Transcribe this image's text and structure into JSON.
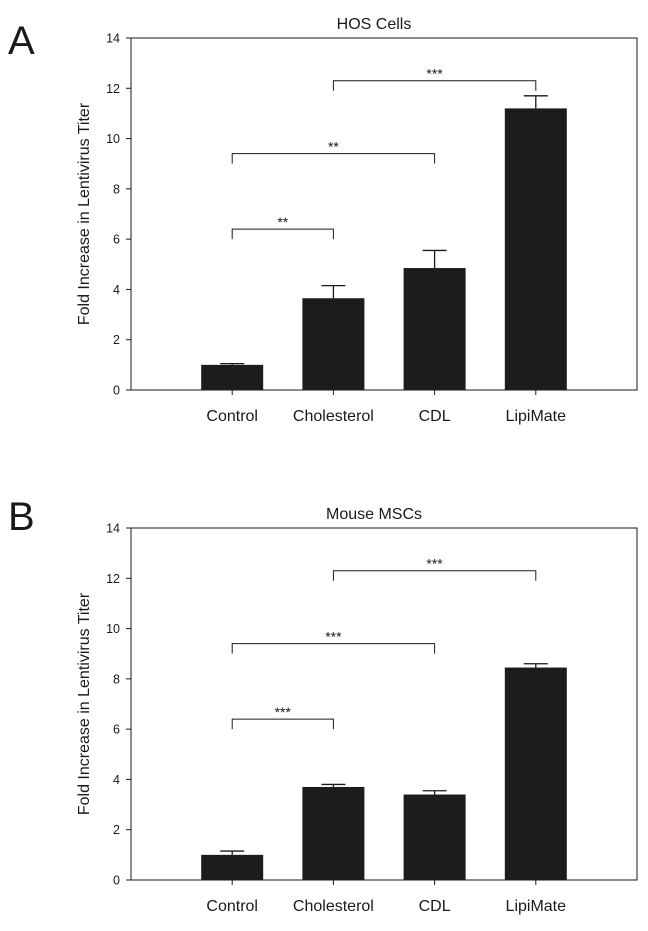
{
  "colors": {
    "bar": "#1c1c1c",
    "axis": "#1a1a1a",
    "background": "#ffffff"
  },
  "chart_data": [
    {
      "type": "bar",
      "panel_label": "A",
      "title": "HOS Cells",
      "xlabel": "",
      "ylabel": "Fold Increase in Lentivirus Titer",
      "ylim": [
        0,
        14
      ],
      "yticks": [
        0,
        2,
        4,
        6,
        8,
        10,
        12,
        14
      ],
      "categories": [
        "Control",
        "Cholesterol",
        "CDL",
        "LipiMate"
      ],
      "values": [
        1.0,
        3.65,
        4.85,
        11.2
      ],
      "errors": [
        0.05,
        0.5,
        0.7,
        0.5
      ],
      "significance": [
        {
          "from": 0,
          "to": 1,
          "level": 6.4,
          "label": "**"
        },
        {
          "from": 0,
          "to": 2,
          "level": 9.4,
          "label": "**"
        },
        {
          "from": 1,
          "to": 3,
          "level": 12.3,
          "label": "***"
        }
      ]
    },
    {
      "type": "bar",
      "panel_label": "B",
      "title": "Mouse MSCs",
      "xlabel": "",
      "ylabel": "Fold Increase in Lentivirus Titer",
      "ylim": [
        0,
        14
      ],
      "yticks": [
        0,
        2,
        4,
        6,
        8,
        10,
        12,
        14
      ],
      "categories": [
        "Control",
        "Cholesterol",
        "CDL",
        "LipiMate"
      ],
      "values": [
        1.0,
        3.7,
        3.4,
        8.45
      ],
      "errors": [
        0.15,
        0.1,
        0.15,
        0.15
      ],
      "significance": [
        {
          "from": 0,
          "to": 1,
          "level": 6.4,
          "label": "***"
        },
        {
          "from": 0,
          "to": 2,
          "level": 9.4,
          "label": "***"
        },
        {
          "from": 1,
          "to": 3,
          "level": 12.3,
          "label": "***"
        }
      ]
    }
  ]
}
